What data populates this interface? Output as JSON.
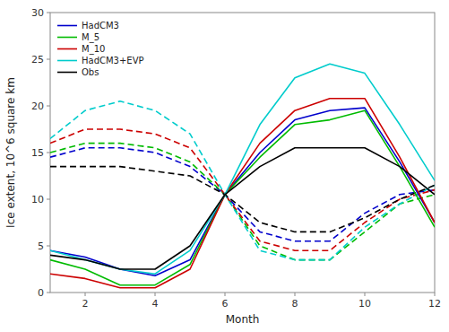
{
  "chart_data": {
    "type": "line",
    "x": [
      1,
      2,
      3,
      4,
      5,
      6,
      7,
      8,
      9,
      10,
      11,
      12
    ],
    "series": [
      {
        "name": "HadCM3",
        "color": "#0000cc",
        "line_style": "dashed",
        "values": [
          14.5,
          15.5,
          15.5,
          15.0,
          13.5,
          10.5,
          6.5,
          5.5,
          5.5,
          8.5,
          10.5,
          11.0
        ]
      },
      {
        "name": "M_5",
        "color": "#00bb00",
        "line_style": "dashed",
        "values": [
          15.0,
          16.0,
          16.0,
          15.5,
          14.0,
          10.5,
          5.0,
          3.5,
          3.5,
          6.5,
          9.5,
          10.5
        ]
      },
      {
        "name": "M_10",
        "color": "#cc0000",
        "line_style": "dashed",
        "values": [
          16.0,
          17.5,
          17.5,
          17.0,
          15.5,
          10.5,
          5.5,
          4.5,
          4.5,
          7.5,
          10.0,
          11.0
        ]
      },
      {
        "name": "HadCM3+EVP",
        "color": "#00cccc",
        "line_style": "dashed",
        "values": [
          16.5,
          19.5,
          20.5,
          19.5,
          17.0,
          10.5,
          4.5,
          3.5,
          3.5,
          7.0,
          9.5,
          11.5
        ]
      },
      {
        "name": "Obs",
        "color": "#000000",
        "line_style": "dashed",
        "values": [
          13.5,
          13.5,
          13.5,
          13.0,
          12.5,
          10.5,
          7.5,
          6.5,
          6.5,
          8.0,
          10.0,
          11.5
        ]
      },
      {
        "name": "HadCM3",
        "color": "#0000cc",
        "line_style": "solid",
        "values": [
          4.5,
          3.8,
          2.5,
          1.8,
          3.5,
          10.5,
          15.0,
          18.5,
          19.5,
          19.8,
          14.0,
          7.5
        ]
      },
      {
        "name": "M_5",
        "color": "#00bb00",
        "line_style": "solid",
        "values": [
          3.5,
          2.5,
          0.8,
          0.8,
          3.0,
          10.5,
          14.5,
          18.0,
          18.5,
          19.5,
          13.5,
          7.0
        ]
      },
      {
        "name": "M_10",
        "color": "#cc0000",
        "line_style": "solid",
        "values": [
          2.0,
          1.5,
          0.5,
          0.5,
          2.5,
          10.5,
          16.0,
          19.5,
          20.8,
          20.8,
          14.5,
          7.5
        ]
      },
      {
        "name": "HadCM3+EVP",
        "color": "#00cccc",
        "line_style": "solid",
        "values": [
          4.5,
          3.5,
          2.5,
          2.0,
          4.5,
          10.5,
          18.0,
          23.0,
          24.5,
          23.5,
          18.0,
          12.0
        ]
      },
      {
        "name": "Obs",
        "color": "#000000",
        "line_style": "solid",
        "values": [
          4.0,
          3.5,
          2.5,
          2.5,
          5.0,
          10.5,
          13.5,
          15.5,
          15.5,
          15.5,
          13.5,
          10.5
        ]
      }
    ],
    "xlabel": "Month",
    "ylabel": "Ice extent, 10^6 square km",
    "xlim": [
      1,
      12
    ],
    "ylim": [
      0,
      30
    ],
    "xticks": [
      2,
      4,
      6,
      8,
      10,
      12
    ],
    "yticks": [
      0,
      5,
      10,
      15,
      20,
      25,
      30
    ],
    "grid": false,
    "legend": "upper left"
  }
}
